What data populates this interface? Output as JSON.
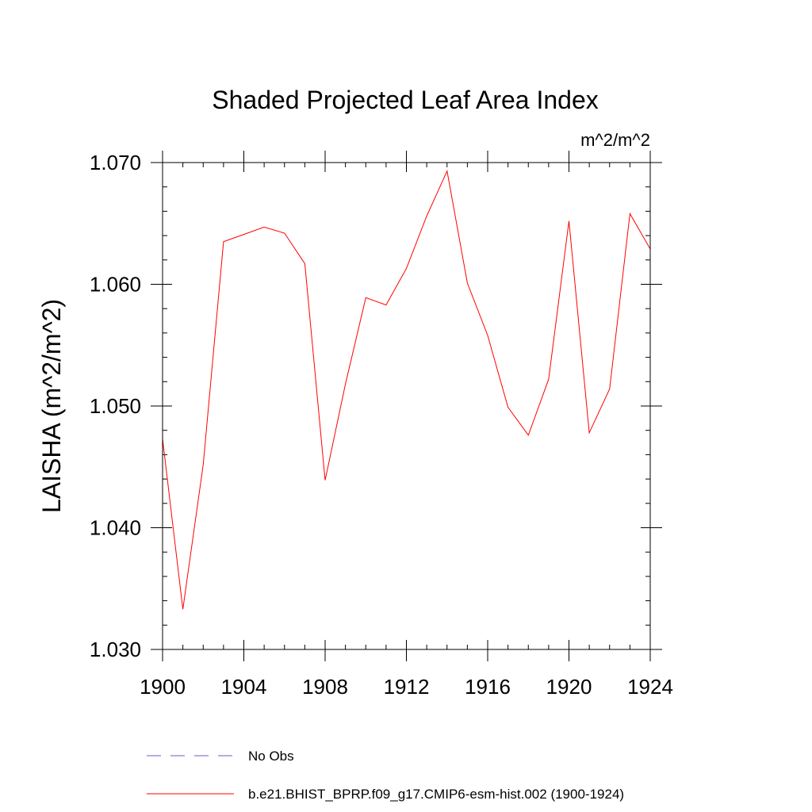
{
  "chart_data": {
    "type": "line",
    "title": "Shaded Projected Leaf Area Index",
    "units_label": "m^2/m^2",
    "ylabel": "LAISHA  (m^2/m^2)",
    "xlabel": "",
    "xlim": [
      1900,
      1924
    ],
    "ylim": [
      1.03,
      1.07
    ],
    "x_ticks": [
      1900,
      1904,
      1908,
      1912,
      1916,
      1920,
      1924
    ],
    "x_tick_labels": [
      "1900",
      "1904",
      "1908",
      "1912",
      "1916",
      "1920",
      "1924"
    ],
    "y_ticks": [
      1.03,
      1.04,
      1.05,
      1.06,
      1.07
    ],
    "y_tick_labels": [
      "1.030",
      "1.040",
      "1.050",
      "1.060",
      "1.070"
    ],
    "grid": false,
    "series": [
      {
        "name": "b.e21.BHIST_BPRP.f09_g17.CMIP6-esm-hist.002 (1900-1924)",
        "color": "#ff0000",
        "dash": "solid",
        "x": [
          1900,
          1901,
          1902,
          1903,
          1904,
          1905,
          1906,
          1907,
          1908,
          1909,
          1910,
          1911,
          1912,
          1913,
          1914,
          1915,
          1916,
          1917,
          1918,
          1919,
          1920,
          1921,
          1922,
          1923,
          1924
        ],
        "values": [
          1.0473,
          1.0333,
          1.0452,
          1.0635,
          1.0641,
          1.0647,
          1.0642,
          1.0617,
          1.0439,
          1.0518,
          1.0589,
          1.0583,
          1.0613,
          1.0656,
          1.0693,
          1.0601,
          1.0558,
          1.0499,
          1.0476,
          1.0522,
          1.0652,
          1.0478,
          1.0514,
          1.0658,
          1.0629
        ]
      }
    ],
    "legend": {
      "placement": "bottom",
      "entries": [
        {
          "label": "No Obs",
          "color": "#6a5acd",
          "dash": "dashed"
        },
        {
          "label": "b.e21.BHIST_BPRP.f09_g17.CMIP6-esm-hist.002 (1900-1924)",
          "color": "#ff0000",
          "dash": "solid"
        }
      ]
    }
  }
}
